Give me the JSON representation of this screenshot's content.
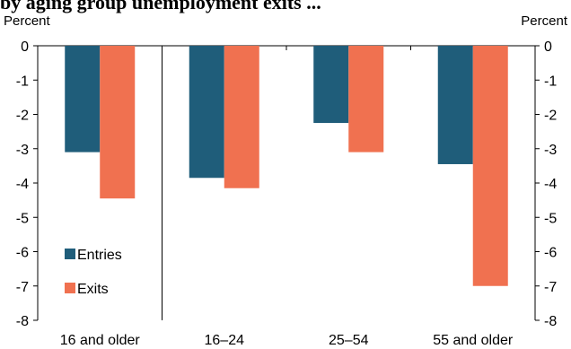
{
  "chart_data": {
    "type": "bar",
    "title": "by aging group unemployment exits ...",
    "ylabel_left": "Percent",
    "ylabel_right": "Percent",
    "ylim": [
      -8,
      0
    ],
    "yticks": [
      0,
      -1,
      -2,
      -3,
      -4,
      -5,
      -6,
      -7,
      -8
    ],
    "categories": [
      "16 and older",
      "16–24",
      "25–54",
      "55 and older"
    ],
    "series": [
      {
        "name": "Entries",
        "color": "#1f5d7a",
        "values": [
          -3.1,
          -3.85,
          -2.25,
          -3.45
        ]
      },
      {
        "name": "Exits",
        "color": "#f07150",
        "values": [
          -4.45,
          -4.15,
          -3.1,
          -7.0
        ]
      }
    ],
    "legend_position": "bottom-left",
    "grid": false
  }
}
